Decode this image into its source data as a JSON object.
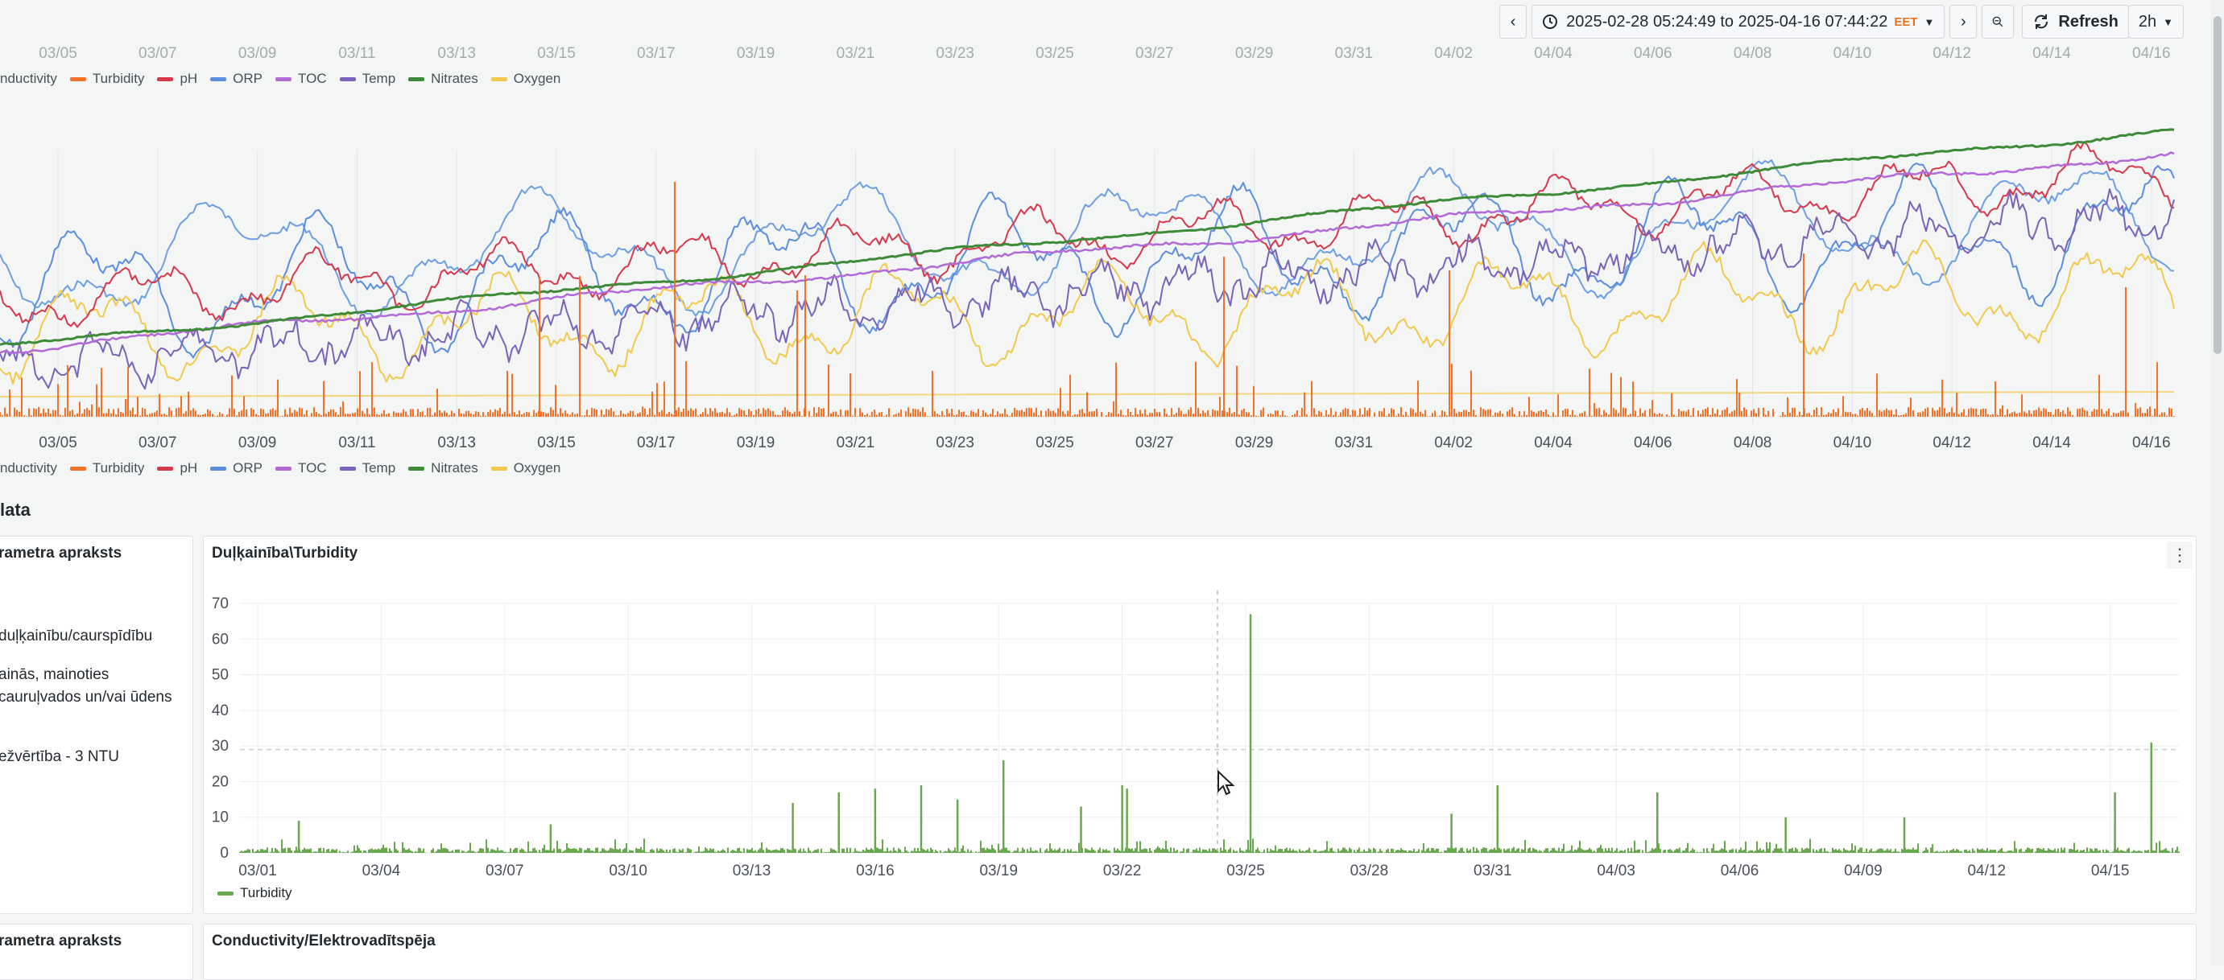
{
  "toolbar": {
    "prev_label": "‹",
    "time_range": "2025-02-28 05:24:49 to 2025-04-16 07:44:22",
    "timezone": "EET",
    "next_label": "›",
    "refresh_label": "Refresh",
    "interval": "2h"
  },
  "overview_chart": {
    "x_ticks": [
      "03/05",
      "03/07",
      "03/09",
      "03/11",
      "03/13",
      "03/15",
      "03/17",
      "03/19",
      "03/21",
      "03/23",
      "03/25",
      "03/27",
      "03/29",
      "03/31",
      "04/02",
      "04/04",
      "04/06",
      "04/08",
      "04/10",
      "04/12",
      "04/14",
      "04/16"
    ],
    "legend": [
      {
        "name": "Conductivity",
        "shown": "nductivity",
        "color": "#6e9fe6"
      },
      {
        "name": "Turbidity",
        "shown": "Turbidity",
        "color": "#f2722a"
      },
      {
        "name": "pH",
        "shown": "pH",
        "color": "#d5394b"
      },
      {
        "name": "ORP",
        "shown": "ORP",
        "color": "#5b8ee0"
      },
      {
        "name": "TOC",
        "shown": "TOC",
        "color": "#b36ad9"
      },
      {
        "name": "Temp",
        "shown": "Temp",
        "color": "#7a63b8"
      },
      {
        "name": "Nitrates",
        "shown": "Nitrates",
        "color": "#3d8b37"
      },
      {
        "name": "Oxygen",
        "shown": "Oxygen",
        "color": "#f2c94c"
      }
    ]
  },
  "section_title": "lata",
  "panel1": {
    "desc_title": "rametra apraksts",
    "desc_lines": [
      "duļķainību/caurspīdību",
      "ainās, mainoties",
      "cauruļvados un/vai ūdens",
      "ežvērtība - 3 NTU"
    ],
    "title": "Duļķainība\\Turbidity",
    "menu_label": "⋮"
  },
  "chart_data": {
    "type": "bar",
    "title": "Duļķainība\\Turbidity",
    "ylim": [
      0,
      70
    ],
    "y_ticks": [
      0,
      10,
      20,
      30,
      40,
      50,
      60,
      70
    ],
    "x_ticks": [
      "03/01",
      "03/04",
      "03/07",
      "03/10",
      "03/13",
      "03/16",
      "03/19",
      "03/22",
      "03/25",
      "03/28",
      "03/31",
      "04/03",
      "04/06",
      "04/09",
      "04/12",
      "04/15"
    ],
    "threshold": 29,
    "series": [
      {
        "name": "Turbidity",
        "color": "#6aa84f"
      }
    ],
    "spikes": [
      {
        "date": "03/02",
        "value": 9
      },
      {
        "date": "03/08",
        "value": 8
      },
      {
        "date": "03/14",
        "value": 14
      },
      {
        "date": "03/15",
        "value": 17
      },
      {
        "date": "03/16",
        "value": 18
      },
      {
        "date": "03/17",
        "value": 19
      },
      {
        "date": "03/18",
        "value": 15
      },
      {
        "date": "03/19",
        "value": 26
      },
      {
        "date": "03/21",
        "value": 13
      },
      {
        "date": "03/22",
        "value": 18
      },
      {
        "date": "03/22",
        "value": 19
      },
      {
        "date": "03/25",
        "value": 67
      },
      {
        "date": "03/30",
        "value": 11
      },
      {
        "date": "03/31",
        "value": 19
      },
      {
        "date": "04/04",
        "value": 17
      },
      {
        "date": "04/07",
        "value": 10
      },
      {
        "date": "04/10",
        "value": 10
      },
      {
        "date": "04/15",
        "value": 17
      },
      {
        "date": "04/16",
        "value": 31
      }
    ]
  },
  "panel2": {
    "desc_title": "rametra apraksts",
    "title": "Conductivity/Elektrovadītspēja"
  }
}
